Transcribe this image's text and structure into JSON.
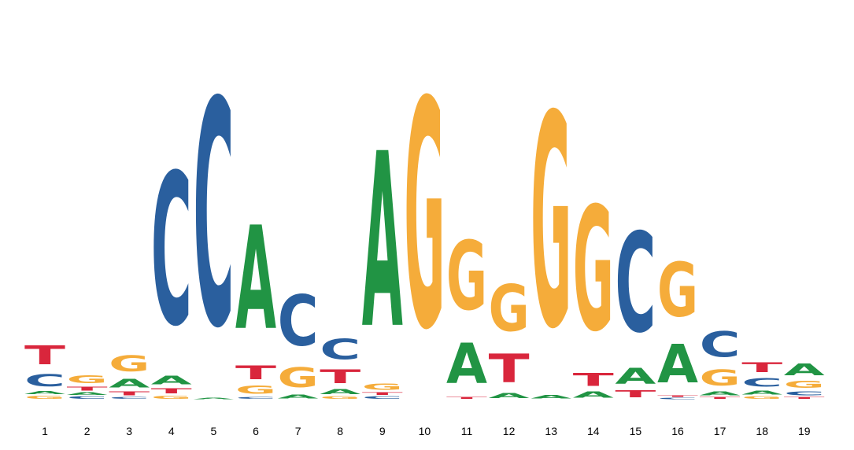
{
  "chart_data": {
    "type": "sequence-logo",
    "colors": {
      "A": "#219444",
      "C": "#2a5f9e",
      "G": "#f5ac3a",
      "T": "#d9263c"
    },
    "positions": [
      {
        "label": "1",
        "stack": [
          {
            "base": "G",
            "height": 6
          },
          {
            "base": "A",
            "height": 6
          },
          {
            "base": "C",
            "height": 25
          },
          {
            "base": "T",
            "height": 38
          }
        ]
      },
      {
        "label": "2",
        "stack": [
          {
            "base": "C",
            "height": 5
          },
          {
            "base": "A",
            "height": 5
          },
          {
            "base": "T",
            "height": 8
          },
          {
            "base": "G",
            "height": 15
          }
        ]
      },
      {
        "label": "3",
        "stack": [
          {
            "base": "C",
            "height": 4
          },
          {
            "base": "T",
            "height": 8
          },
          {
            "base": "A",
            "height": 18
          },
          {
            "base": "G",
            "height": 32
          }
        ]
      },
      {
        "label": "4",
        "stack": [
          {
            "base": "G",
            "height": 6
          },
          {
            "base": "T",
            "height": 10
          },
          {
            "base": "A",
            "height": 18
          },
          {
            "base": "C",
            "height": 308
          }
        ]
      },
      {
        "label": "5",
        "stack": [
          {
            "base": "A",
            "height": 3
          },
          {
            "base": "C",
            "height": 458
          }
        ]
      },
      {
        "label": "6",
        "stack": [
          {
            "base": "C",
            "height": 4
          },
          {
            "base": "G",
            "height": 16
          },
          {
            "base": "T",
            "height": 28
          },
          {
            "base": "A",
            "height": 210
          }
        ]
      },
      {
        "label": "7",
        "stack": [
          {
            "base": "A",
            "height": 8
          },
          {
            "base": "G",
            "height": 40
          },
          {
            "base": "C",
            "height": 103
          }
        ]
      },
      {
        "label": "8",
        "stack": [
          {
            "base": "G",
            "height": 5
          },
          {
            "base": "A",
            "height": 10
          },
          {
            "base": "T",
            "height": 28
          },
          {
            "base": "C",
            "height": 42
          }
        ]
      },
      {
        "label": "9",
        "stack": [
          {
            "base": "C",
            "height": 5
          },
          {
            "base": "T",
            "height": 5
          },
          {
            "base": "G",
            "height": 12
          },
          {
            "base": "A",
            "height": 355
          }
        ]
      },
      {
        "label": "10",
        "stack": [
          {
            "base": "G",
            "height": 462
          }
        ]
      },
      {
        "label": "11",
        "stack": [
          {
            "base": "T",
            "height": 4
          },
          {
            "base": "A",
            "height": 82
          },
          {
            "base": "G",
            "height": 140
          }
        ]
      },
      {
        "label": "12",
        "stack": [
          {
            "base": "A",
            "height": 10
          },
          {
            "base": "T",
            "height": 58
          },
          {
            "base": "G",
            "height": 95
          }
        ]
      },
      {
        "label": "13",
        "stack": [
          {
            "base": "A",
            "height": 7
          },
          {
            "base": "G",
            "height": 432
          }
        ]
      },
      {
        "label": "14",
        "stack": [
          {
            "base": "A",
            "height": 12
          },
          {
            "base": "T",
            "height": 26
          },
          {
            "base": "G",
            "height": 252
          }
        ]
      },
      {
        "label": "15",
        "stack": [
          {
            "base": "T",
            "height": 14
          },
          {
            "base": "A",
            "height": 32
          },
          {
            "base": "C",
            "height": 202
          }
        ]
      },
      {
        "label": "16",
        "stack": [
          {
            "base": "C",
            "height": 3
          },
          {
            "base": "T",
            "height": 3
          },
          {
            "base": "A",
            "height": 78
          },
          {
            "base": "G",
            "height": 110
          }
        ]
      },
      {
        "label": "17",
        "stack": [
          {
            "base": "T",
            "height": 4
          },
          {
            "base": "A",
            "height": 8
          },
          {
            "base": "G",
            "height": 32
          },
          {
            "base": "C",
            "height": 52
          }
        ]
      },
      {
        "label": "18",
        "stack": [
          {
            "base": "G",
            "height": 5
          },
          {
            "base": "A",
            "height": 8
          },
          {
            "base": "C",
            "height": 18
          },
          {
            "base": "T",
            "height": 20
          }
        ]
      },
      {
        "label": "19",
        "stack": [
          {
            "base": "T",
            "height": 4
          },
          {
            "base": "C",
            "height": 8
          },
          {
            "base": "G",
            "height": 14
          },
          {
            "base": "A",
            "height": 24
          }
        ]
      }
    ]
  }
}
